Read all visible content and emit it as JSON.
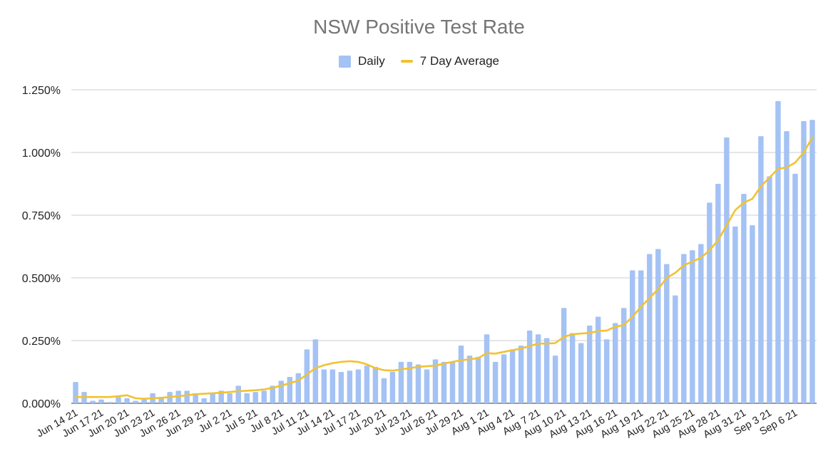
{
  "chart_data": {
    "type": "bar",
    "title": "NSW Positive Test Rate",
    "xlabel": "",
    "ylabel": "",
    "ylim": [
      0,
      1.25
    ],
    "grid": true,
    "legend_position": "top-center",
    "y_ticks": [
      "0.000%",
      "0.250%",
      "0.500%",
      "0.750%",
      "1.000%",
      "1.250%"
    ],
    "x_tick_labels": [
      "Jun 14 21",
      "Jun 17 21",
      "Jun 20 21",
      "Jun 23 21",
      "Jun 26 21",
      "Jun 29 21",
      "Jul 2 21",
      "Jul 5 21",
      "Jul 8 21",
      "Jul 11 21",
      "Jul 14 21",
      "Jul 17 21",
      "Jul 20 21",
      "Jul 23 21",
      "Jul 26 21",
      "Jul 29 21",
      "Aug 1 21",
      "Aug 4 21",
      "Aug 7 21",
      "Aug 10 21",
      "Aug 13 21",
      "Aug 16 21",
      "Aug 19 21",
      "Aug 22 21",
      "Aug 25 21",
      "Aug 28 21",
      "Aug 31 21",
      "Sep 3 21",
      "Sep 6 21"
    ],
    "colors": {
      "daily": "#a4c2f4",
      "average": "#f1c232",
      "grid": "#cccccc"
    },
    "series": [
      {
        "name": "Daily",
        "type": "bar",
        "values": [
          0.085,
          0.045,
          0.01,
          0.015,
          0.005,
          0.025,
          0.02,
          0.01,
          0.015,
          0.04,
          0.025,
          0.045,
          0.05,
          0.05,
          0.04,
          0.02,
          0.04,
          0.05,
          0.04,
          0.07,
          0.04,
          0.045,
          0.05,
          0.07,
          0.09,
          0.105,
          0.12,
          0.215,
          0.255,
          0.135,
          0.135,
          0.125,
          0.13,
          0.135,
          0.15,
          0.145,
          0.1,
          0.125,
          0.165,
          0.165,
          0.155,
          0.135,
          0.175,
          0.165,
          0.165,
          0.23,
          0.19,
          0.185,
          0.275,
          0.165,
          0.195,
          0.215,
          0.23,
          0.29,
          0.275,
          0.26,
          0.19,
          0.38,
          0.28,
          0.24,
          0.31,
          0.345,
          0.255,
          0.32,
          0.38,
          0.53,
          0.53,
          0.595,
          0.615,
          0.555,
          0.43,
          0.595,
          0.61,
          0.635,
          0.8,
          0.875,
          1.06,
          0.705,
          0.835,
          0.71,
          1.065,
          0.905,
          1.205,
          1.085,
          0.915,
          1.125,
          1.13
        ]
      },
      {
        "name": "7 Day Average",
        "type": "line",
        "values": [
          0.025,
          0.025,
          0.025,
          0.025,
          0.025,
          0.028,
          0.032,
          0.02,
          0.018,
          0.02,
          0.022,
          0.025,
          0.028,
          0.032,
          0.036,
          0.038,
          0.04,
          0.042,
          0.045,
          0.048,
          0.05,
          0.052,
          0.055,
          0.062,
          0.07,
          0.08,
          0.09,
          0.115,
          0.14,
          0.152,
          0.16,
          0.165,
          0.168,
          0.165,
          0.155,
          0.14,
          0.132,
          0.13,
          0.135,
          0.14,
          0.145,
          0.148,
          0.15,
          0.158,
          0.165,
          0.172,
          0.175,
          0.18,
          0.2,
          0.198,
          0.205,
          0.212,
          0.218,
          0.228,
          0.238,
          0.238,
          0.24,
          0.265,
          0.275,
          0.278,
          0.28,
          0.288,
          0.29,
          0.305,
          0.312,
          0.345,
          0.385,
          0.42,
          0.455,
          0.5,
          0.52,
          0.55,
          0.565,
          0.58,
          0.61,
          0.65,
          0.71,
          0.77,
          0.8,
          0.815,
          0.865,
          0.9,
          0.935,
          0.94,
          0.96,
          1.0,
          1.06
        ]
      }
    ]
  }
}
